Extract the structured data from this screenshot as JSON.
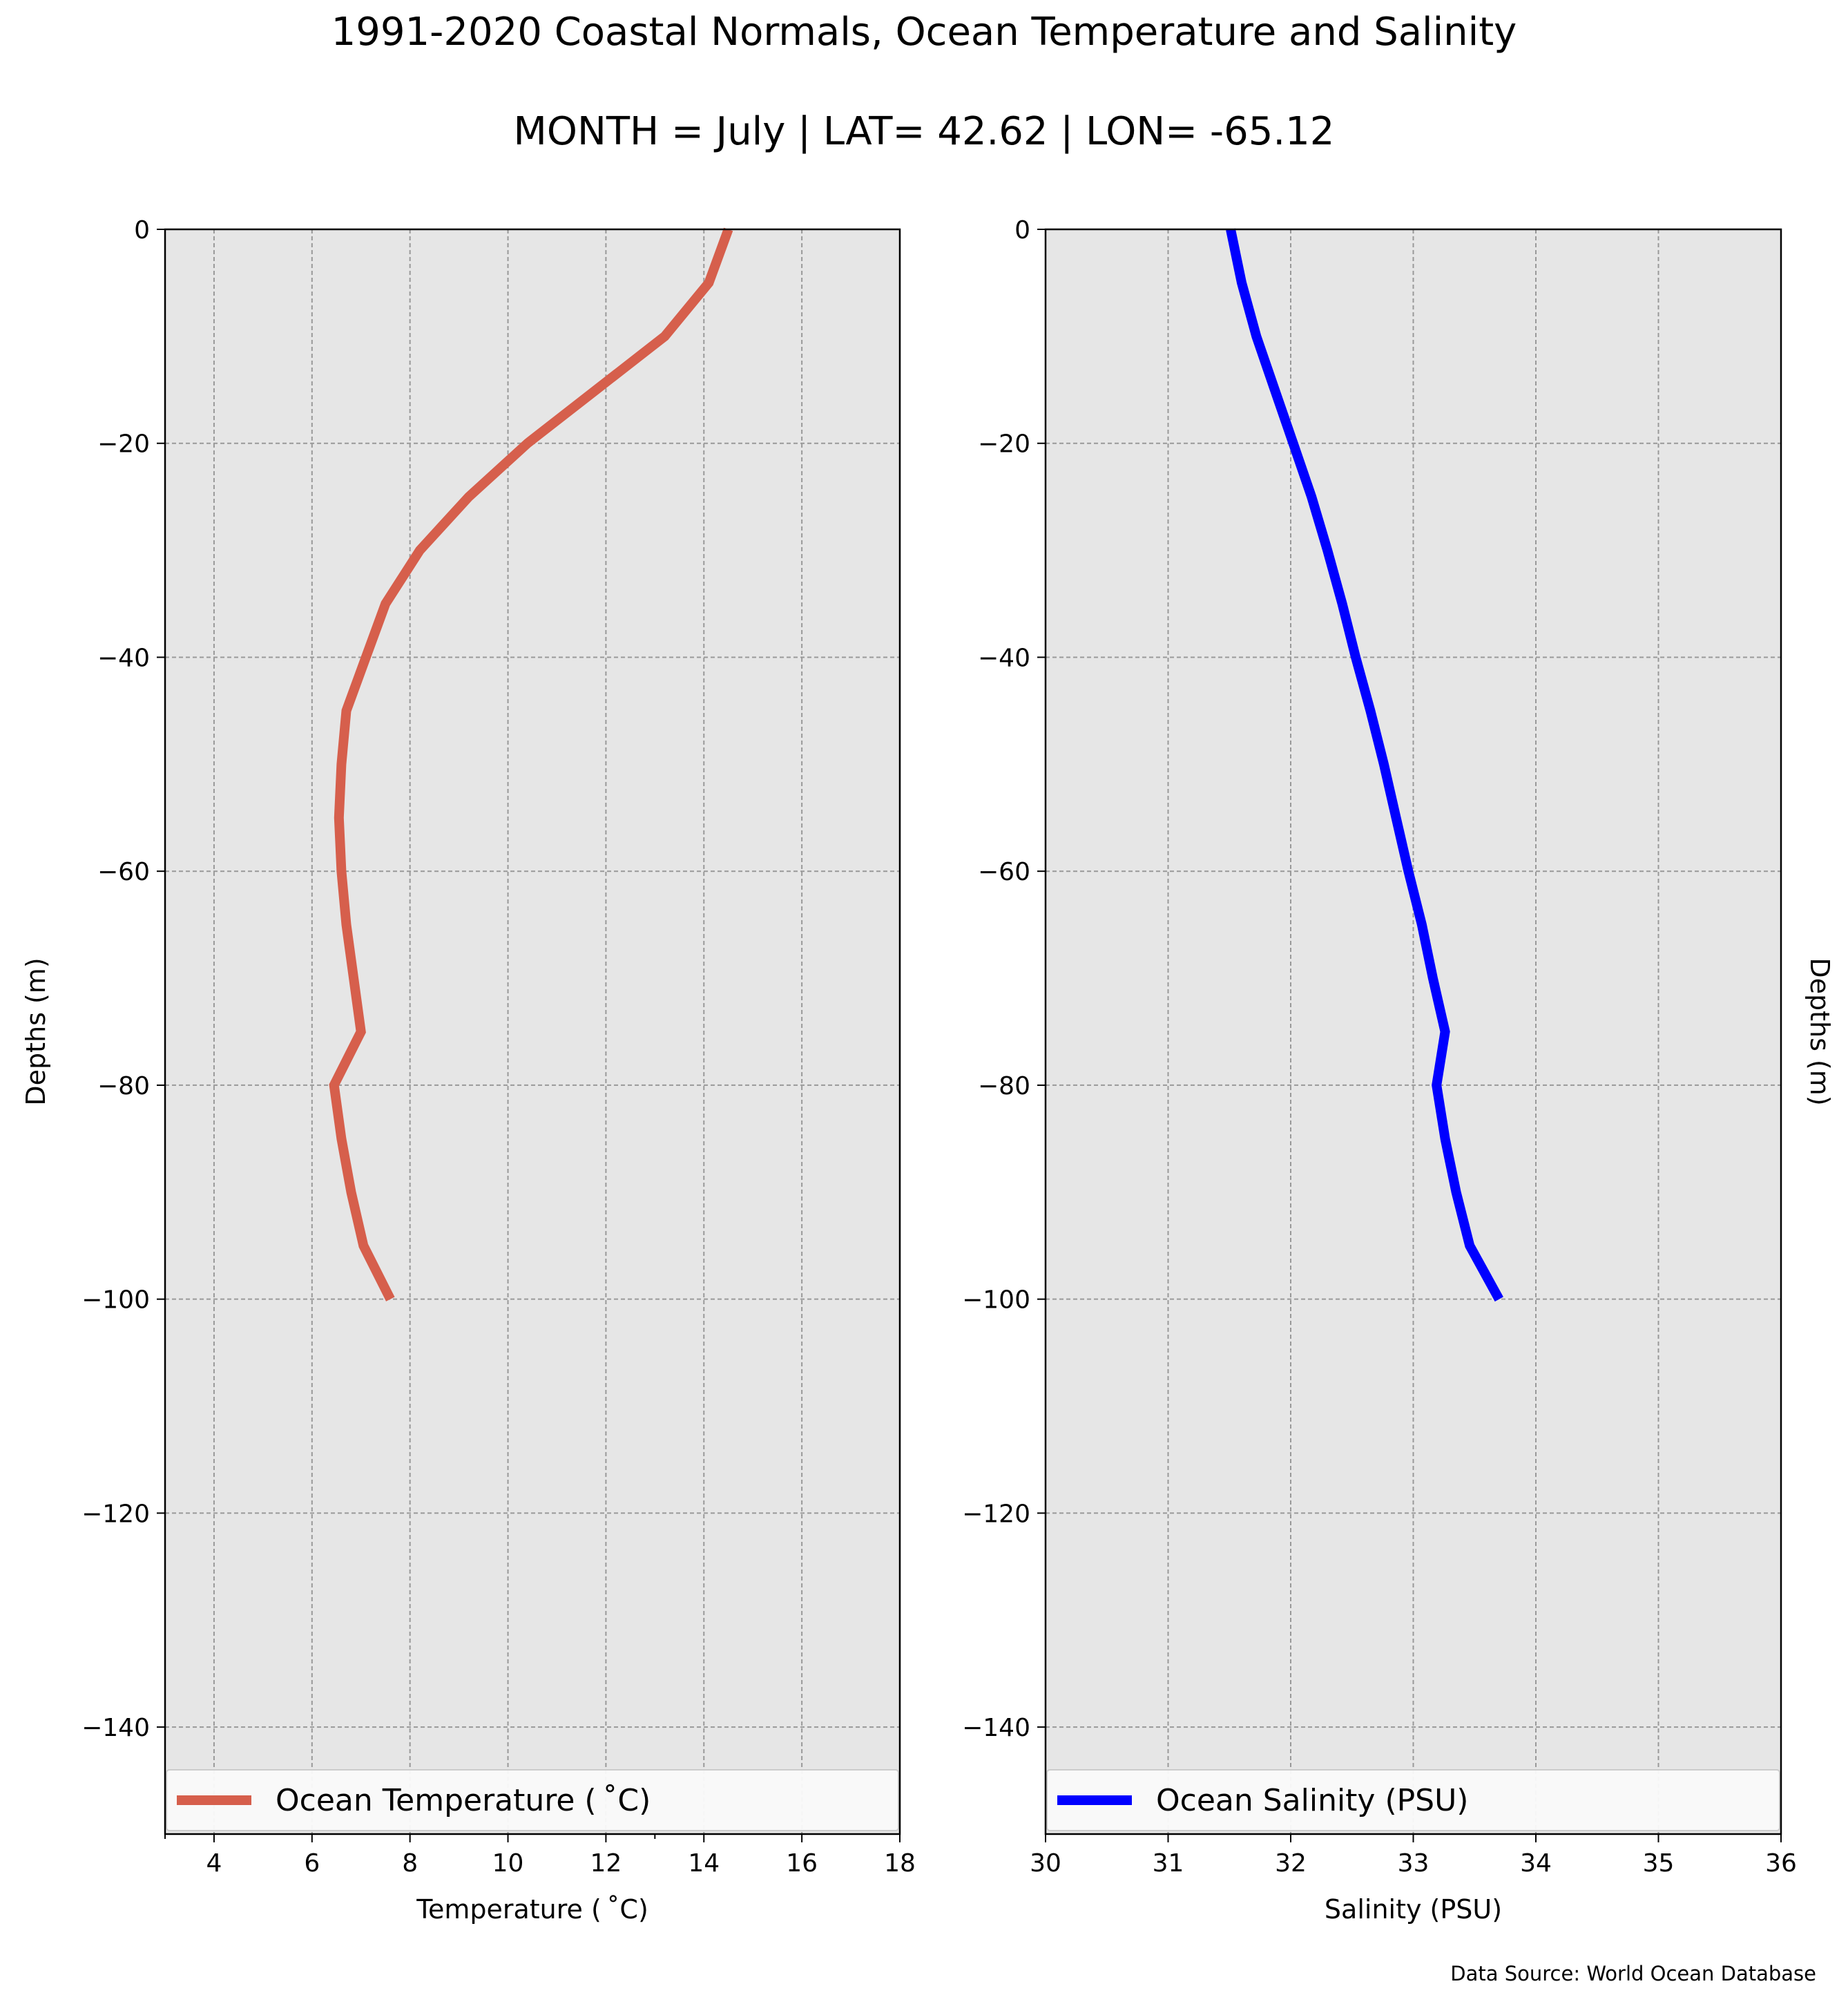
{
  "title": "1991-2020 Coastal Normals, Ocean Temperature and Salinity",
  "subtitle": "MONTH = July | LAT= 42.62 | LON= -65.12",
  "footer": "Data Source: World Ocean Database",
  "chart_data": [
    {
      "type": "line",
      "title": "",
      "xlabel": "Temperature ($^\\circ$C)",
      "ylabel": "Depths (m)",
      "xlim": [
        3,
        18
      ],
      "ylim": [
        -150,
        0
      ],
      "xticks": [
        4,
        6,
        8,
        10,
        12,
        14,
        16,
        18
      ],
      "yticks": [
        0,
        -20,
        -40,
        -60,
        -80,
        -100,
        -120,
        -140
      ],
      "grid": true,
      "legend_position": "lower center",
      "series": [
        {
          "name": "Ocean Temperature ($^\\circ$C)",
          "color": "#d65f4c",
          "x": [
            14.5,
            14.1,
            13.2,
            11.8,
            10.4,
            9.2,
            8.2,
            7.5,
            7.1,
            6.7,
            6.6,
            6.55,
            6.6,
            6.7,
            6.85,
            7.0,
            6.45,
            6.6,
            6.8,
            7.05,
            7.6
          ],
          "y": [
            0,
            -5,
            -10,
            -15,
            -20,
            -25,
            -30,
            -35,
            -40,
            -45,
            -50,
            -55,
            -60,
            -65,
            -70,
            -75,
            -80,
            -85,
            -90,
            -95,
            -100
          ]
        }
      ]
    },
    {
      "type": "line",
      "title": "",
      "xlabel": "Salinity (PSU)",
      "ylabel": "Depths (m)",
      "xlim": [
        30,
        36
      ],
      "ylim": [
        -150,
        0
      ],
      "xticks": [
        30,
        31,
        32,
        33,
        34,
        35,
        36
      ],
      "yticks": [
        0,
        -20,
        -40,
        -60,
        -80,
        -100,
        -120,
        -140
      ],
      "grid": true,
      "legend_position": "lower center",
      "series": [
        {
          "name": "Ocean Salinity (PSU)",
          "color": "#0000ff",
          "x": [
            31.51,
            31.6,
            31.72,
            31.87,
            32.02,
            32.17,
            32.3,
            32.42,
            32.53,
            32.65,
            32.76,
            32.86,
            32.96,
            33.07,
            33.16,
            33.26,
            33.19,
            33.26,
            33.35,
            33.46,
            33.7
          ],
          "y": [
            0,
            -5,
            -10,
            -15,
            -20,
            -25,
            -30,
            -35,
            -40,
            -45,
            -50,
            -55,
            -60,
            -65,
            -70,
            -75,
            -80,
            -85,
            -90,
            -95,
            -100
          ]
        }
      ]
    }
  ]
}
